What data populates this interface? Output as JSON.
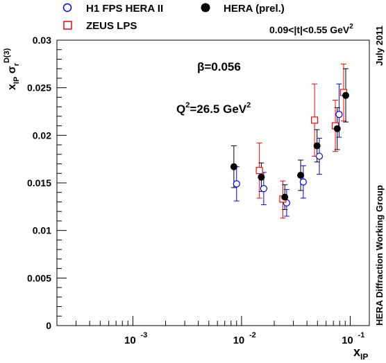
{
  "chart_data": {
    "type": "scatter",
    "x_scale": "log",
    "xlim": [
      0.0002,
      0.15
    ],
    "ylim": [
      0,
      0.03
    ],
    "x_ticks": [
      {
        "base": "10",
        "exp": "-3"
      },
      {
        "base": "10",
        "exp": "-2"
      },
      {
        "base": "10",
        "exp": "-1"
      }
    ],
    "y_ticks": [
      "0",
      "0.005",
      "0.01",
      "0.015",
      "0.02",
      "0.025",
      "0.03"
    ],
    "y_tick_values": [
      0,
      0.005,
      0.01,
      0.015,
      0.02,
      0.025,
      0.03
    ],
    "xlabel": {
      "main": "x",
      "sub": "IP"
    },
    "ylabel": {
      "main": "x",
      "sub": "IP",
      "sigma": "σ",
      "sigma_sub": "r",
      "sup": "D(3)"
    },
    "annotations": {
      "beta": "β=0.056",
      "q2_main": "Q",
      "q2_sup": "2",
      "q2_rest": "=26.5 GeV",
      "q2_unit_sup": "2",
      "t_range": "0.09<|t|<0.55 GeV",
      "t_range_sup": "2"
    },
    "side_labels": {
      "top": "July 2011",
      "bottom": "HERA Diffraction Working Group"
    },
    "legend": [
      "H1 FPS HERA II",
      "ZEUS LPS",
      "HERA (prel.)"
    ],
    "series": [
      {
        "name": "H1 FPS HERA II",
        "marker": "open-circle",
        "color": "#0000ff",
        "points": [
          {
            "x": 0.009,
            "y": 0.0149,
            "lo": 0.0131,
            "hi": 0.0167
          },
          {
            "x": 0.016,
            "y": 0.0144,
            "lo": 0.0127,
            "hi": 0.0161
          },
          {
            "x": 0.026,
            "y": 0.0129,
            "lo": 0.0115,
            "hi": 0.0143
          },
          {
            "x": 0.037,
            "y": 0.0151,
            "lo": 0.0134,
            "hi": 0.0168
          },
          {
            "x": 0.052,
            "y": 0.0178,
            "lo": 0.0159,
            "hi": 0.0197
          },
          {
            "x": 0.079,
            "y": 0.0222,
            "lo": 0.0198,
            "hi": 0.0254
          }
        ]
      },
      {
        "name": "ZEUS LPS",
        "marker": "open-square",
        "color": "#ff0000",
        "points": [
          {
            "x": 0.0146,
            "y": 0.0163,
            "lo": 0.0134,
            "hi": 0.0192
          },
          {
            "x": 0.024,
            "y": 0.0133,
            "lo": 0.0113,
            "hi": 0.0152
          },
          {
            "x": 0.047,
            "y": 0.0216,
            "lo": 0.0178,
            "hi": 0.0254
          },
          {
            "x": 0.073,
            "y": 0.021,
            "lo": 0.0183,
            "hi": 0.0237
          },
          {
            "x": 0.087,
            "y": 0.0245,
            "lo": 0.0215,
            "hi": 0.0275
          }
        ]
      },
      {
        "name": "HERA (prel.)",
        "marker": "filled-circle",
        "color": "#000000",
        "points": [
          {
            "x": 0.0085,
            "y": 0.0167,
            "lo": 0.0145,
            "hi": 0.0189
          },
          {
            "x": 0.0152,
            "y": 0.0156,
            "lo": 0.0141,
            "hi": 0.0171
          },
          {
            "x": 0.025,
            "y": 0.0135,
            "lo": 0.0122,
            "hi": 0.0148
          },
          {
            "x": 0.035,
            "y": 0.0158,
            "lo": 0.0142,
            "hi": 0.0174
          },
          {
            "x": 0.0495,
            "y": 0.0189,
            "lo": 0.0172,
            "hi": 0.0206
          },
          {
            "x": 0.076,
            "y": 0.0207,
            "lo": 0.0185,
            "hi": 0.0229
          },
          {
            "x": 0.091,
            "y": 0.0242,
            "lo": 0.0214,
            "hi": 0.027
          }
        ]
      }
    ]
  }
}
